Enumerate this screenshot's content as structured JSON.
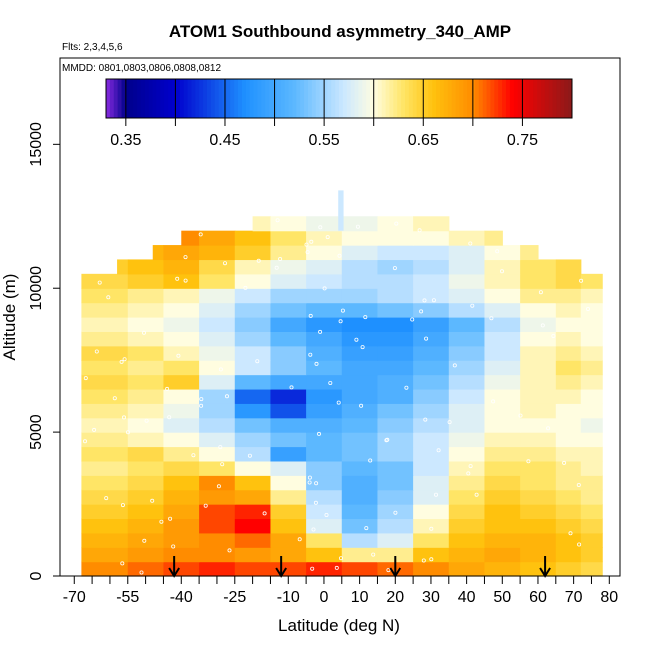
{
  "chart_data": {
    "type": "heatmap",
    "title": "ATOM1 Southbound asymmetry_340_AMP",
    "annotation_flights": "Flts: 2,3,4,5,6",
    "annotation_dates": "MMDD: 0801,0803,0806,0808,0812",
    "xlabel": "Latitude (deg N)",
    "ylabel": "Altitude (m)",
    "xlim": [
      -70,
      80
    ],
    "ylim": [
      0,
      18000
    ],
    "x_ticks": [
      -70,
      -55,
      -40,
      -25,
      -10,
      0,
      10,
      20,
      30,
      40,
      50,
      60,
      70,
      80
    ],
    "x_ticks_minor_step": 5,
    "y_ticks": [
      0,
      5000,
      10000,
      15000
    ],
    "colorbar": {
      "range": [
        0.33,
        0.8
      ],
      "ticks": [
        0.35,
        0.45,
        0.55,
        0.65,
        0.75
      ],
      "tick_labels": [
        "0.35",
        "0.45",
        "0.55",
        "0.65",
        "0.75"
      ],
      "colors": [
        "#8a2be2",
        "#00008b",
        "#0000cd",
        "#1e90ff",
        "#5cb8ff",
        "#cce8ff",
        "#fffde0",
        "#ffe566",
        "#ffc20e",
        "#ff8c00",
        "#ff0000",
        "#8b1a1a"
      ],
      "color_stops": [
        0.33,
        0.35,
        0.4,
        0.47,
        0.52,
        0.57,
        0.6,
        0.63,
        0.66,
        0.7,
        0.74,
        0.8
      ]
    },
    "altitude_bins_m": [
      0,
      500,
      1000,
      1500,
      2000,
      2500,
      3000,
      3500,
      4000,
      4500,
      5000,
      5500,
      6000,
      6500,
      7000,
      7500,
      8000,
      8500,
      9000,
      9500,
      10000,
      10500,
      11000,
      11500,
      12000
    ],
    "lat_segments": [
      -68,
      -55,
      -45,
      -35,
      -25,
      -15,
      -5,
      5,
      15,
      25,
      35,
      45,
      55,
      65,
      72,
      78
    ],
    "profiles": [
      {
        "lat_min": -68,
        "lat_max": 78,
        "values": [
          0.7,
          0.71,
          0.72,
          0.73,
          0.72,
          0.72,
          0.73,
          0.72,
          0.71,
          0.7,
          0.68,
          0.67,
          0.66,
          0.65,
          0.64
        ]
      },
      {
        "lat_min": -68,
        "lat_max": 78,
        "values": [
          0.68,
          0.69,
          0.7,
          0.7,
          0.69,
          0.68,
          0.66,
          0.62,
          0.62,
          0.66,
          0.67,
          0.68,
          0.67,
          0.66,
          0.65
        ]
      },
      {
        "lat_min": -68,
        "lat_max": 78,
        "values": [
          0.67,
          0.68,
          0.69,
          0.7,
          0.71,
          0.68,
          0.63,
          0.56,
          0.58,
          0.63,
          0.66,
          0.67,
          0.67,
          0.66,
          0.65
        ]
      },
      {
        "lat_min": -68,
        "lat_max": 78,
        "values": [
          0.66,
          0.67,
          0.69,
          0.72,
          0.74,
          0.66,
          0.58,
          0.53,
          0.56,
          0.61,
          0.65,
          0.66,
          0.66,
          0.65,
          0.64
        ]
      },
      {
        "lat_min": -68,
        "lat_max": 78,
        "values": [
          0.65,
          0.66,
          0.68,
          0.72,
          0.73,
          0.65,
          0.57,
          0.52,
          0.55,
          0.6,
          0.64,
          0.66,
          0.65,
          0.64,
          0.63
        ]
      },
      {
        "lat_min": -68,
        "lat_max": 78,
        "values": [
          0.64,
          0.65,
          0.67,
          0.69,
          0.68,
          0.62,
          0.56,
          0.51,
          0.54,
          0.58,
          0.63,
          0.65,
          0.64,
          0.63,
          0.62
        ]
      },
      {
        "lat_min": -68,
        "lat_max": 78,
        "values": [
          0.63,
          0.64,
          0.66,
          0.7,
          0.66,
          0.6,
          0.54,
          0.51,
          0.53,
          0.58,
          0.62,
          0.64,
          0.63,
          0.62,
          0.62
        ]
      },
      {
        "lat_min": -68,
        "lat_max": 78,
        "values": [
          0.62,
          0.63,
          0.64,
          0.63,
          0.6,
          0.58,
          0.54,
          0.52,
          0.53,
          0.57,
          0.61,
          0.63,
          0.63,
          0.62,
          0.61
        ]
      },
      {
        "lat_min": -68,
        "lat_max": 78,
        "values": [
          0.63,
          0.64,
          0.62,
          0.6,
          0.56,
          0.49,
          0.52,
          0.53,
          0.55,
          0.57,
          0.6,
          0.62,
          0.62,
          0.61,
          0.61
        ]
      },
      {
        "lat_min": -68,
        "lat_max": 78,
        "values": [
          0.62,
          0.61,
          0.6,
          0.58,
          0.55,
          0.53,
          0.52,
          0.53,
          0.55,
          0.57,
          0.59,
          0.61,
          0.61,
          0.6,
          0.6
        ]
      },
      {
        "lat_min": -68,
        "lat_max": 78,
        "values": [
          0.61,
          0.6,
          0.58,
          0.56,
          0.53,
          0.51,
          0.51,
          0.52,
          0.54,
          0.56,
          0.58,
          0.6,
          0.6,
          0.6,
          0.59
        ]
      },
      {
        "lat_min": -68,
        "lat_max": 78,
        "values": [
          0.62,
          0.61,
          0.59,
          0.55,
          0.48,
          0.44,
          0.49,
          0.51,
          0.53,
          0.55,
          0.58,
          0.6,
          0.61,
          0.6,
          0.6
        ]
      },
      {
        "lat_min": -68,
        "lat_max": 78,
        "values": [
          0.63,
          0.62,
          0.6,
          0.55,
          0.45,
          0.42,
          0.48,
          0.5,
          0.51,
          0.54,
          0.57,
          0.6,
          0.61,
          0.61,
          0.6
        ]
      },
      {
        "lat_min": -68,
        "lat_max": 78,
        "values": [
          0.64,
          0.63,
          0.65,
          0.58,
          0.52,
          0.5,
          0.5,
          0.5,
          0.51,
          0.53,
          0.56,
          0.59,
          0.61,
          0.62,
          0.61
        ]
      },
      {
        "lat_min": -68,
        "lat_max": 78,
        "values": [
          0.63,
          0.62,
          0.63,
          0.6,
          0.57,
          0.54,
          0.52,
          0.5,
          0.5,
          0.52,
          0.55,
          0.58,
          0.61,
          0.63,
          0.62
        ]
      },
      {
        "lat_min": -68,
        "lat_max": 78,
        "values": [
          0.64,
          0.63,
          0.61,
          0.59,
          0.57,
          0.54,
          0.51,
          0.49,
          0.49,
          0.51,
          0.54,
          0.57,
          0.61,
          0.62,
          0.61
        ]
      },
      {
        "lat_min": -68,
        "lat_max": 78,
        "values": [
          0.62,
          0.61,
          0.6,
          0.58,
          0.55,
          0.52,
          0.5,
          0.48,
          0.48,
          0.5,
          0.53,
          0.57,
          0.6,
          0.61,
          0.6
        ]
      },
      {
        "lat_min": -68,
        "lat_max": 78,
        "values": [
          0.61,
          0.6,
          0.59,
          0.57,
          0.54,
          0.5,
          0.48,
          0.47,
          0.47,
          0.49,
          0.52,
          0.56,
          0.59,
          0.6,
          0.6
        ]
      },
      {
        "lat_min": -68,
        "lat_max": 78,
        "values": [
          0.62,
          0.61,
          0.6,
          0.58,
          0.55,
          0.53,
          0.52,
          0.52,
          0.53,
          0.54,
          0.56,
          0.58,
          0.6,
          0.61,
          0.6
        ]
      },
      {
        "lat_min": -68,
        "lat_max": 78,
        "values": [
          0.63,
          0.62,
          0.61,
          0.59,
          0.57,
          0.55,
          0.55,
          0.55,
          0.56,
          0.57,
          0.58,
          0.6,
          0.62,
          0.62,
          0.61
        ]
      },
      {
        "lat_min": -68,
        "lat_max": 78,
        "values": [
          0.64,
          0.65,
          0.66,
          0.63,
          0.6,
          0.58,
          0.57,
          0.56,
          0.56,
          0.57,
          0.59,
          0.61,
          0.63,
          0.64,
          0.63
        ]
      },
      {
        "lat_min": -58,
        "lat_max": 72,
        "values": [
          0.65,
          0.66,
          0.67,
          0.64,
          0.61,
          0.59,
          0.58,
          0.56,
          0.55,
          0.56,
          0.58,
          0.61,
          0.63,
          0.64,
          0.63
        ]
      },
      {
        "lat_min": -48,
        "lat_max": 60,
        "values": [
          0.66,
          0.67,
          0.68,
          0.67,
          0.65,
          0.62,
          0.6,
          0.58,
          0.57,
          0.57,
          0.58,
          0.6,
          0.62,
          0.63,
          0.62
        ]
      },
      {
        "lat_min": -40,
        "lat_max": 50,
        "values": [
          0.68,
          0.69,
          0.7,
          0.68,
          0.66,
          0.63,
          0.61,
          0.6,
          0.6,
          0.6,
          0.61,
          0.62,
          0.63,
          0.63,
          0.62
        ]
      },
      {
        "lat_min": -20,
        "lat_max": 35,
        "values": [
          0.62,
          0.62,
          0.62,
          0.62,
          0.61,
          0.6,
          0.59,
          0.59,
          0.6,
          0.61,
          0.62,
          0.62,
          0.62,
          0.62,
          0.62
        ]
      }
    ],
    "arrow_markers_latitude": [
      -42,
      -12,
      20,
      62
    ]
  }
}
